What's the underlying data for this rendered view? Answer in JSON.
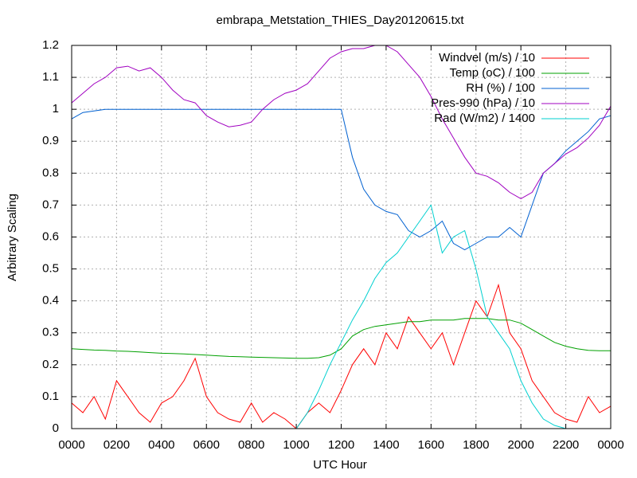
{
  "chart_data": {
    "type": "line",
    "title": "embrapa_Metstation_THIES_Day20120615.txt",
    "x_label": "UTC Hour",
    "y_label": "Arbitrary Scaling",
    "xlim": [
      0,
      24
    ],
    "ylim": [
      0,
      1.2
    ],
    "xticks": [
      {
        "value": 0,
        "label": "0000"
      },
      {
        "value": 2,
        "label": "0200"
      },
      {
        "value": 4,
        "label": "0400"
      },
      {
        "value": 6,
        "label": "0600"
      },
      {
        "value": 8,
        "label": "0800"
      },
      {
        "value": 10,
        "label": "1000"
      },
      {
        "value": 12,
        "label": "1200"
      },
      {
        "value": 14,
        "label": "1400"
      },
      {
        "value": 16,
        "label": "1600"
      },
      {
        "value": 18,
        "label": "1800"
      },
      {
        "value": 20,
        "label": "2000"
      },
      {
        "value": 22,
        "label": "2200"
      },
      {
        "value": 24,
        "label": "0000"
      }
    ],
    "yticks": [
      0,
      0.1,
      0.2,
      0.3,
      0.4,
      0.5,
      0.6,
      0.7,
      0.8,
      0.9,
      1,
      1.1,
      1.2
    ],
    "grid": true,
    "legend": "top-right",
    "x": [
      0,
      0.5,
      1,
      1.5,
      2,
      2.5,
      3,
      3.5,
      4,
      4.5,
      5,
      5.5,
      6,
      6.5,
      7,
      7.5,
      8,
      8.5,
      9,
      9.5,
      10,
      10.5,
      11,
      11.5,
      12,
      12.5,
      13,
      13.5,
      14,
      14.5,
      15,
      15.5,
      16,
      16.5,
      17,
      17.5,
      18,
      18.5,
      19,
      19.5,
      20,
      20.5,
      21,
      21.5,
      22,
      22.5,
      23,
      23.5,
      24
    ],
    "series": [
      {
        "name": "Windvel (m/s) / 10",
        "color": "#ff0000",
        "values": [
          0.08,
          0.05,
          0.1,
          0.03,
          0.15,
          0.1,
          0.05,
          0.02,
          0.08,
          0.1,
          0.15,
          0.22,
          0.1,
          0.05,
          0.03,
          0.02,
          0.08,
          0.02,
          0.05,
          0.03,
          0,
          0.05,
          0.08,
          0.05,
          0.12,
          0.2,
          0.25,
          0.2,
          0.3,
          0.25,
          0.35,
          0.3,
          0.25,
          0.3,
          0.2,
          0.3,
          0.4,
          0.35,
          0.45,
          0.3,
          0.25,
          0.15,
          0.1,
          0.05,
          0.03,
          0.02,
          0.1,
          0.05,
          0.07
        ]
      },
      {
        "name": "Temp (oC) / 100",
        "color": "#00a000",
        "values": [
          0.25,
          0.248,
          0.246,
          0.245,
          0.243,
          0.242,
          0.24,
          0.238,
          0.236,
          0.235,
          0.234,
          0.232,
          0.23,
          0.228,
          0.226,
          0.225,
          0.224,
          0.223,
          0.222,
          0.221,
          0.22,
          0.22,
          0.222,
          0.23,
          0.25,
          0.29,
          0.31,
          0.32,
          0.325,
          0.33,
          0.335,
          0.335,
          0.34,
          0.34,
          0.34,
          0.345,
          0.345,
          0.345,
          0.34,
          0.34,
          0.33,
          0.31,
          0.29,
          0.27,
          0.258,
          0.25,
          0.245,
          0.244,
          0.244
        ]
      },
      {
        "name": "RH (%) / 100",
        "color": "#0060d0",
        "values": [
          0.97,
          0.99,
          0.995,
          1,
          1,
          1,
          1,
          1,
          1,
          1,
          1,
          1,
          1,
          1,
          1,
          1,
          1,
          1,
          1,
          1,
          1,
          1,
          1,
          1,
          1,
          0.85,
          0.75,
          0.7,
          0.68,
          0.67,
          0.62,
          0.6,
          0.62,
          0.65,
          0.58,
          0.56,
          0.58,
          0.6,
          0.6,
          0.63,
          0.6,
          0.7,
          0.8,
          0.83,
          0.87,
          0.9,
          0.93,
          0.97,
          0.98
        ]
      },
      {
        "name": "Pres-990 (hPa) / 10",
        "color": "#a000c0",
        "values": [
          1.02,
          1.05,
          1.08,
          1.1,
          1.13,
          1.135,
          1.12,
          1.13,
          1.1,
          1.06,
          1.03,
          1.02,
          0.98,
          0.96,
          0.945,
          0.95,
          0.96,
          1,
          1.03,
          1.05,
          1.06,
          1.08,
          1.12,
          1.16,
          1.18,
          1.19,
          1.19,
          1.2,
          1.2,
          1.18,
          1.14,
          1.1,
          1.04,
          0.97,
          0.91,
          0.85,
          0.8,
          0.79,
          0.77,
          0.74,
          0.72,
          0.74,
          0.8,
          0.83,
          0.86,
          0.88,
          0.91,
          0.95,
          1.01
        ]
      },
      {
        "name": "Rad (W/m2) / 1400",
        "color": "#00d0d0",
        "values": [
          0,
          0,
          0,
          0,
          0,
          0,
          0,
          0,
          0,
          0,
          0,
          0,
          0,
          0,
          0,
          0,
          0,
          0,
          0,
          0,
          0,
          0.05,
          0.12,
          0.2,
          0.27,
          0.34,
          0.4,
          0.47,
          0.52,
          0.55,
          0.6,
          0.65,
          0.7,
          0.55,
          0.6,
          0.62,
          0.5,
          0.35,
          0.3,
          0.25,
          0.15,
          0.08,
          0.03,
          0.01,
          0,
          0,
          0,
          0,
          0
        ]
      }
    ]
  }
}
